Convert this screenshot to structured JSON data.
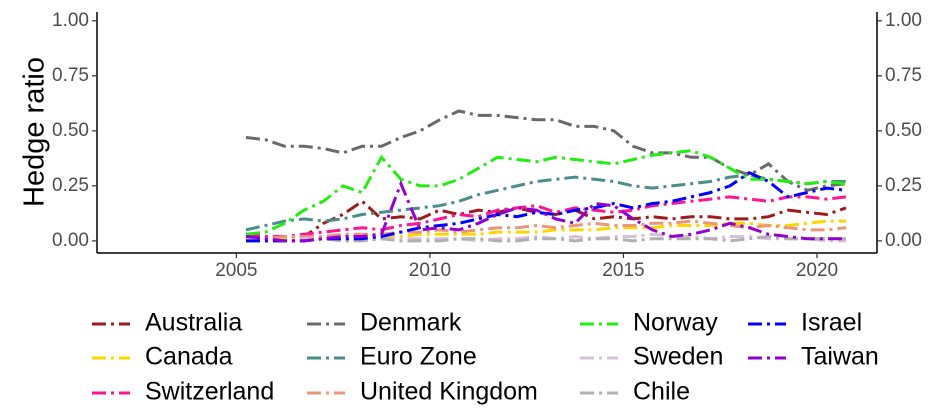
{
  "chart_data": {
    "type": "line",
    "y_label": "Hedge ratio",
    "x": [
      2005.25,
      2005.75,
      2006.25,
      2006.75,
      2007.25,
      2007.75,
      2008.25,
      2008.75,
      2009.25,
      2009.75,
      2010.25,
      2010.75,
      2011.25,
      2011.75,
      2012.25,
      2012.75,
      2013.25,
      2013.75,
      2014.25,
      2014.75,
      2015.25,
      2015.75,
      2016.25,
      2016.75,
      2017.25,
      2017.75,
      2018.25,
      2018.75,
      2019.25,
      2019.75,
      2020.25,
      2020.75
    ],
    "xlim": [
      2001.4,
      2021.55
    ],
    "xticks": [
      2005,
      2010,
      2015,
      2020
    ],
    "ylim": [
      -0.055,
      1.04
    ],
    "yticks": [
      {
        "value": 0,
        "label": "0.00"
      },
      {
        "value": 0.25,
        "label": "0.25"
      },
      {
        "value": 0.5,
        "label": "0.50"
      },
      {
        "value": 0.75,
        "label": "0.75"
      },
      {
        "value": 1,
        "label": "1.00"
      }
    ],
    "y2lim": [
      -0.055,
      1.04
    ],
    "y2ticks": [
      {
        "value": 0,
        "label": "0.00"
      },
      {
        "value": 0.25,
        "label": "0.25"
      },
      {
        "value": 0.5,
        "label": "0.50"
      },
      {
        "value": 0.75,
        "label": "0.75"
      },
      {
        "value": 1,
        "label": "1.00"
      }
    ],
    "legend": "bottom",
    "series": [
      {
        "name": "Australia",
        "color": "#9e1b1b",
        "values": [
          0.02,
          0.01,
          0.01,
          0.02,
          0.08,
          0.12,
          0.18,
          0.1,
          0.11,
          0.1,
          0.14,
          0.12,
          0.14,
          0.13,
          0.15,
          0.13,
          0.12,
          0.14,
          0.1,
          0.11,
          0.1,
          0.11,
          0.1,
          0.11,
          0.11,
          0.1,
          0.1,
          0.11,
          0.14,
          0.13,
          0.12,
          0.15
        ]
      },
      {
        "name": "Canada",
        "color": "#ffd700",
        "values": [
          0.01,
          0.01,
          0.01,
          0.01,
          0.01,
          0.02,
          0.02,
          0.02,
          0.02,
          0.03,
          0.03,
          0.03,
          0.03,
          0.04,
          0.04,
          0.04,
          0.05,
          0.05,
          0.05,
          0.06,
          0.06,
          0.06,
          0.07,
          0.07,
          0.07,
          0.08,
          0.08,
          0.07,
          0.07,
          0.08,
          0.09,
          0.09
        ]
      },
      {
        "name": "Switzerland",
        "color": "#ff1493",
        "values": [
          0.03,
          0.02,
          0.02,
          0.03,
          0.04,
          0.05,
          0.06,
          0.05,
          0.07,
          0.08,
          0.1,
          0.12,
          0.11,
          0.14,
          0.15,
          0.16,
          0.13,
          0.15,
          0.14,
          0.13,
          0.14,
          0.16,
          0.17,
          0.18,
          0.19,
          0.2,
          0.19,
          0.18,
          0.2,
          0.2,
          0.19,
          0.2
        ]
      },
      {
        "name": "Denmark",
        "color": "#696969",
        "values": [
          0.47,
          0.46,
          0.43,
          0.43,
          0.42,
          0.4,
          0.43,
          0.43,
          0.47,
          0.5,
          0.55,
          0.59,
          0.57,
          0.57,
          0.56,
          0.55,
          0.55,
          0.52,
          0.52,
          0.5,
          0.43,
          0.4,
          0.4,
          0.38,
          0.38,
          0.33,
          0.3,
          0.35,
          0.27,
          0.23,
          0.25,
          0.26
        ]
      },
      {
        "name": "Euro Zone",
        "color": "#4b8d8d",
        "values": [
          0.05,
          0.07,
          0.09,
          0.1,
          0.09,
          0.1,
          0.12,
          0.13,
          0.14,
          0.15,
          0.16,
          0.18,
          0.21,
          0.23,
          0.25,
          0.27,
          0.28,
          0.29,
          0.28,
          0.27,
          0.25,
          0.24,
          0.25,
          0.26,
          0.27,
          0.29,
          0.3,
          0.28,
          0.27,
          0.26,
          0.27,
          0.27
        ]
      },
      {
        "name": "United Kingdom",
        "color": "#e9967a",
        "values": [
          0.01,
          0.01,
          0.02,
          0.02,
          0.02,
          0.03,
          0.03,
          0.03,
          0.04,
          0.04,
          0.05,
          0.04,
          0.05,
          0.06,
          0.06,
          0.07,
          0.06,
          0.07,
          0.08,
          0.07,
          0.07,
          0.08,
          0.08,
          0.09,
          0.08,
          0.07,
          0.06,
          0.07,
          0.06,
          0.05,
          0.05,
          0.06
        ]
      },
      {
        "name": "Norway",
        "color": "#22ee11",
        "values": [
          0.03,
          0.04,
          0.08,
          0.14,
          0.18,
          0.25,
          0.22,
          0.38,
          0.28,
          0.25,
          0.25,
          0.28,
          0.33,
          0.38,
          0.37,
          0.36,
          0.38,
          0.37,
          0.36,
          0.35,
          0.37,
          0.39,
          0.4,
          0.41,
          0.38,
          0.33,
          0.28,
          0.28,
          0.27,
          0.26,
          0.27,
          0.26
        ]
      },
      {
        "name": "Sweden",
        "color": "#d8bfd8",
        "values": [
          0.01,
          0.0,
          0.0,
          0.01,
          0.01,
          0.01,
          0.0,
          0.01,
          0.01,
          0.01,
          0.01,
          0.01,
          0.0,
          0.01,
          0.01,
          0.02,
          0.01,
          0.02,
          0.01,
          0.02,
          0.02,
          0.03,
          0.02,
          0.02,
          0.01,
          0.02,
          0.02,
          0.01,
          0.01,
          0.01,
          0.0,
          0.0
        ]
      },
      {
        "name": "Chile",
        "color": "#b0b0b0",
        "values": [
          0.0,
          0.0,
          0.0,
          0.0,
          0.01,
          0.0,
          0.0,
          0.01,
          0.0,
          0.0,
          0.0,
          0.01,
          0.01,
          0.0,
          0.0,
          0.01,
          0.01,
          0.0,
          0.01,
          0.01,
          0.0,
          0.01,
          0.01,
          0.01,
          0.01,
          0.0,
          0.01,
          0.02,
          0.01,
          0.01,
          0.01,
          0.01
        ]
      },
      {
        "name": "Israel",
        "color": "#0000ff",
        "values": [
          0.0,
          0.0,
          0.0,
          0.0,
          0.01,
          0.01,
          0.01,
          0.02,
          0.04,
          0.06,
          0.07,
          0.08,
          0.1,
          0.12,
          0.11,
          0.13,
          0.12,
          0.14,
          0.15,
          0.17,
          0.15,
          0.17,
          0.18,
          0.2,
          0.22,
          0.25,
          0.31,
          0.27,
          0.2,
          0.22,
          0.24,
          0.23
        ]
      },
      {
        "name": "Taiwan",
        "color": "#9400d3",
        "values": [
          0.02,
          0.01,
          0.0,
          0.0,
          0.01,
          0.02,
          0.02,
          0.03,
          0.26,
          0.05,
          0.06,
          0.05,
          0.08,
          0.12,
          0.15,
          0.14,
          0.1,
          0.08,
          0.17,
          0.16,
          0.1,
          0.05,
          0.02,
          0.03,
          0.05,
          0.08,
          0.06,
          0.03,
          0.02,
          0.01,
          0.01,
          0.01
        ]
      }
    ]
  }
}
